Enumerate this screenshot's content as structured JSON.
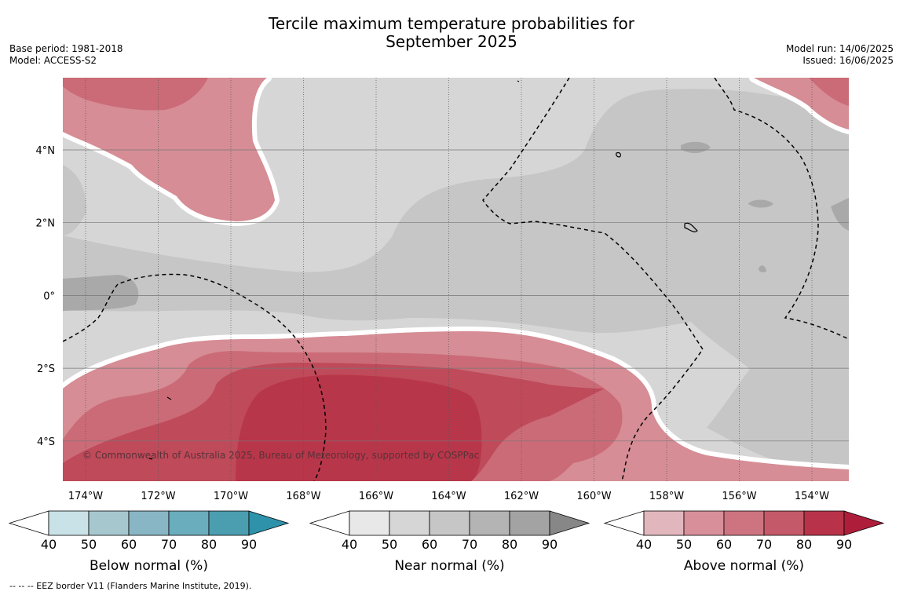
{
  "title_line1": "Tercile maximum temperature probabilities for",
  "title_line2": "September 2025",
  "meta_left": {
    "base_period": "Base period: 1981-2018",
    "model": "Model: ACCESS-S2"
  },
  "meta_right": {
    "model_run": "Model run: 14/06/2025",
    "issued": "Issued: 16/06/2025"
  },
  "copyright": "© Commonwealth of Australia 2025, Bureau of Meteorology, supported by COSPPac",
  "footnote": "-- -- -- EEZ border V11 (Flanders Marine Institute, 2019).",
  "map": {
    "lon_ticks": [
      "174°W",
      "172°W",
      "170°W",
      "168°W",
      "166°W",
      "164°W",
      "162°W",
      "160°W",
      "158°W",
      "156°W",
      "154°W"
    ],
    "lat_ticks": [
      "4°N",
      "2°N",
      "0°",
      "2°S",
      "4°S"
    ],
    "colors": {
      "near_light": "#d6d6d6",
      "near_mid": "#c6c6c6",
      "near_dark": "#a9a9a9",
      "above_40": "#d68d95",
      "above_50": "#cb6b77",
      "above_60": "#bf4a5a",
      "above_70": "#b8364a"
    }
  },
  "colorbars": [
    {
      "title": "Below normal (%)",
      "labels": [
        "40",
        "50",
        "60",
        "70",
        "80",
        "90"
      ],
      "colors": [
        "#c9e2e8",
        "#a6c7ce",
        "#89b6c4",
        "#6aadbd",
        "#4b9eb0"
      ],
      "extend": "#2e92aa"
    },
    {
      "title": "Near normal (%)",
      "labels": [
        "40",
        "50",
        "60",
        "70",
        "80",
        "90"
      ],
      "colors": [
        "#e8e8e8",
        "#d6d6d6",
        "#c6c6c6",
        "#b4b4b4",
        "#a3a3a3"
      ],
      "extend": "#878787"
    },
    {
      "title": "Above normal (%)",
      "labels": [
        "40",
        "50",
        "60",
        "70",
        "80",
        "90"
      ],
      "colors": [
        "#e1b7bd",
        "#d88f99",
        "#ce7481",
        "#c45a69",
        "#b83349"
      ],
      "extend": "#ae1e3a"
    }
  ]
}
